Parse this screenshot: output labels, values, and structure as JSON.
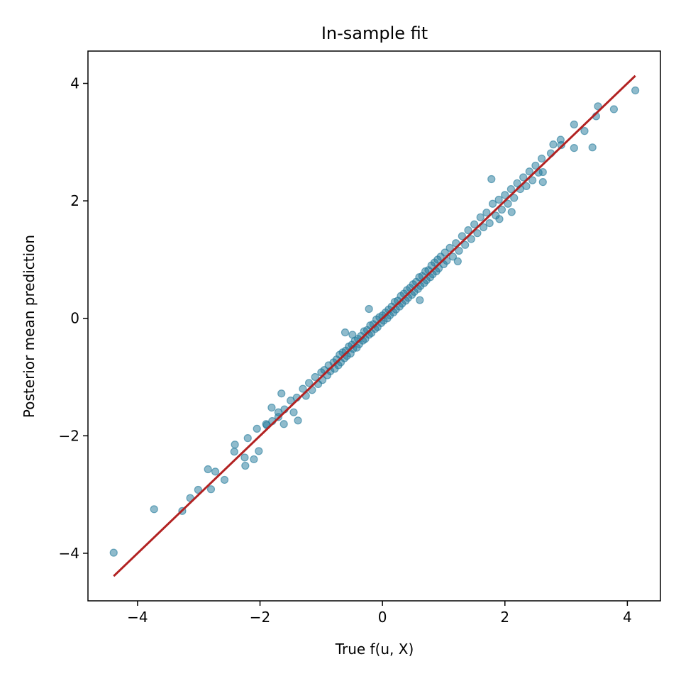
{
  "chart_data": {
    "type": "scatter",
    "title": "In-sample fit",
    "xlabel": "True f(u, X)",
    "ylabel": "Posterior mean prediction",
    "xlim": [
      -4.81,
      4.54
    ],
    "ylim": [
      -4.81,
      4.55
    ],
    "xticks": [
      -4,
      -2,
      0,
      2,
      4
    ],
    "yticks": [
      -4,
      -2,
      0,
      2,
      4
    ],
    "xtick_labels": [
      "−4",
      "−2",
      "0",
      "2",
      "4"
    ],
    "ytick_labels": [
      "−4",
      "−2",
      "0",
      "2",
      "4"
    ],
    "grid": false,
    "point_color": "#1f7899",
    "point_alpha": 0.5,
    "line_color": "#b22222",
    "reference_line": {
      "name": "y = x",
      "x": [
        -4.39,
        4.13
      ],
      "y": [
        -4.39,
        4.13
      ]
    },
    "points": [
      [
        -4.39,
        -3.99
      ],
      [
        -3.73,
        -3.25
      ],
      [
        -3.27,
        -3.28
      ],
      [
        -3.14,
        -3.06
      ],
      [
        -3.01,
        -2.92
      ],
      [
        -2.85,
        -2.57
      ],
      [
        -2.8,
        -2.91
      ],
      [
        -2.73,
        -2.61
      ],
      [
        -2.58,
        -2.75
      ],
      [
        -2.41,
        -2.15
      ],
      [
        -2.42,
        -2.27
      ],
      [
        -2.25,
        -2.37
      ],
      [
        -2.24,
        -2.51
      ],
      [
        -2.2,
        -2.04
      ],
      [
        -2.1,
        -2.4
      ],
      [
        -2.02,
        -2.26
      ],
      [
        -2.05,
        -1.88
      ],
      [
        -1.81,
        -1.52
      ],
      [
        -1.65,
        -1.28
      ],
      [
        -1.38,
        -1.74
      ],
      [
        -1.89,
        -1.82
      ],
      [
        -1.7,
        -1.68
      ],
      [
        -1.61,
        -1.8
      ],
      [
        4.13,
        3.88
      ],
      [
        3.78,
        3.56
      ],
      [
        3.52,
        3.61
      ],
      [
        3.43,
        2.91
      ],
      [
        3.49,
        3.44
      ],
      [
        3.3,
        3.19
      ],
      [
        3.13,
        2.9
      ],
      [
        3.13,
        3.3
      ],
      [
        2.92,
        2.95
      ],
      [
        2.79,
        2.96
      ],
      [
        2.91,
        3.04
      ],
      [
        2.75,
        2.81
      ],
      [
        2.62,
        2.49
      ],
      [
        2.62,
        2.32
      ],
      [
        2.11,
        1.81
      ],
      [
        1.78,
        2.37
      ],
      [
        1.91,
        1.69
      ],
      [
        1.23,
        0.97
      ],
      [
        0.61,
        0.31
      ],
      [
        -0.22,
        0.16
      ],
      [
        -0.49,
        -0.28
      ],
      [
        -0.61,
        -0.24
      ],
      [
        -1.4,
        -1.35
      ],
      [
        -1.3,
        -1.2
      ],
      [
        -1.25,
        -1.32
      ],
      [
        -1.2,
        -1.1
      ],
      [
        -1.15,
        -1.22
      ],
      [
        -1.1,
        -1.0
      ],
      [
        -1.05,
        -1.12
      ],
      [
        -1.0,
        -0.92
      ],
      [
        -0.98,
        -1.05
      ],
      [
        -0.95,
        -0.88
      ],
      [
        -0.9,
        -0.97
      ],
      [
        -0.88,
        -0.8
      ],
      [
        -0.85,
        -0.9
      ],
      [
        -0.8,
        -0.75
      ],
      [
        -0.78,
        -0.86
      ],
      [
        -0.75,
        -0.7
      ],
      [
        -0.72,
        -0.8
      ],
      [
        -0.7,
        -0.62
      ],
      [
        -0.68,
        -0.75
      ],
      [
        -0.65,
        -0.58
      ],
      [
        -0.62,
        -0.68
      ],
      [
        -0.6,
        -0.55
      ],
      [
        -0.58,
        -0.64
      ],
      [
        -0.55,
        -0.48
      ],
      [
        -0.52,
        -0.6
      ],
      [
        -0.5,
        -0.45
      ],
      [
        -0.48,
        -0.52
      ],
      [
        -0.45,
        -0.38
      ],
      [
        -0.42,
        -0.5
      ],
      [
        -0.4,
        -0.35
      ],
      [
        -0.38,
        -0.44
      ],
      [
        -0.35,
        -0.3
      ],
      [
        -0.32,
        -0.38
      ],
      [
        -0.3,
        -0.22
      ],
      [
        -0.28,
        -0.35
      ],
      [
        -0.25,
        -0.2
      ],
      [
        -0.22,
        -0.28
      ],
      [
        -0.2,
        -0.12
      ],
      [
        -0.18,
        -0.25
      ],
      [
        -0.15,
        -0.1
      ],
      [
        -0.12,
        -0.18
      ],
      [
        -0.1,
        -0.02
      ],
      [
        -0.08,
        -0.15
      ],
      [
        -0.05,
        0.02
      ],
      [
        -0.02,
        -0.08
      ],
      [
        0,
        0.05
      ],
      [
        0.02,
        -0.04
      ],
      [
        0.05,
        0.1
      ],
      [
        0.08,
        0.0
      ],
      [
        0.1,
        0.15
      ],
      [
        0.12,
        0.05
      ],
      [
        0.15,
        0.2
      ],
      [
        0.18,
        0.1
      ],
      [
        0.2,
        0.28
      ],
      [
        0.22,
        0.15
      ],
      [
        0.25,
        0.3
      ],
      [
        0.28,
        0.2
      ],
      [
        0.3,
        0.38
      ],
      [
        0.32,
        0.25
      ],
      [
        0.35,
        0.42
      ],
      [
        0.38,
        0.3
      ],
      [
        0.4,
        0.48
      ],
      [
        0.42,
        0.35
      ],
      [
        0.45,
        0.52
      ],
      [
        0.48,
        0.4
      ],
      [
        0.5,
        0.58
      ],
      [
        0.52,
        0.45
      ],
      [
        0.55,
        0.62
      ],
      [
        0.58,
        0.5
      ],
      [
        0.6,
        0.7
      ],
      [
        0.62,
        0.55
      ],
      [
        0.65,
        0.72
      ],
      [
        0.68,
        0.6
      ],
      [
        0.7,
        0.8
      ],
      [
        0.72,
        0.65
      ],
      [
        0.75,
        0.82
      ],
      [
        0.78,
        0.7
      ],
      [
        0.8,
        0.9
      ],
      [
        0.82,
        0.75
      ],
      [
        0.85,
        0.95
      ],
      [
        0.88,
        0.8
      ],
      [
        0.9,
        1.0
      ],
      [
        0.92,
        0.85
      ],
      [
        0.95,
        1.05
      ],
      [
        1.0,
        0.92
      ],
      [
        1.02,
        1.12
      ],
      [
        1.05,
        0.98
      ],
      [
        1.1,
        1.2
      ],
      [
        1.15,
        1.05
      ],
      [
        1.2,
        1.28
      ],
      [
        1.25,
        1.15
      ],
      [
        1.3,
        1.4
      ],
      [
        1.35,
        1.25
      ],
      [
        1.4,
        1.5
      ],
      [
        1.45,
        1.35
      ],
      [
        1.5,
        1.6
      ],
      [
        1.55,
        1.45
      ],
      [
        1.6,
        1.72
      ],
      [
        1.65,
        1.55
      ],
      [
        1.7,
        1.8
      ],
      [
        1.75,
        1.62
      ],
      [
        1.8,
        1.95
      ],
      [
        1.85,
        1.75
      ],
      [
        1.9,
        2.02
      ],
      [
        1.95,
        1.85
      ],
      [
        2.0,
        2.1
      ],
      [
        2.05,
        1.95
      ],
      [
        2.1,
        2.2
      ],
      [
        2.15,
        2.05
      ],
      [
        2.2,
        2.3
      ],
      [
        2.25,
        2.2
      ],
      [
        2.3,
        2.4
      ],
      [
        2.35,
        2.25
      ],
      [
        2.4,
        2.5
      ],
      [
        2.45,
        2.35
      ],
      [
        2.5,
        2.6
      ],
      [
        2.55,
        2.48
      ],
      [
        2.6,
        2.72
      ],
      [
        -1.6,
        -1.55
      ],
      [
        -1.5,
        -1.4
      ],
      [
        -1.45,
        -1.6
      ],
      [
        -1.7,
        -1.6
      ],
      [
        -1.8,
        -1.75
      ],
      [
        -1.9,
        -1.8
      ]
    ]
  }
}
